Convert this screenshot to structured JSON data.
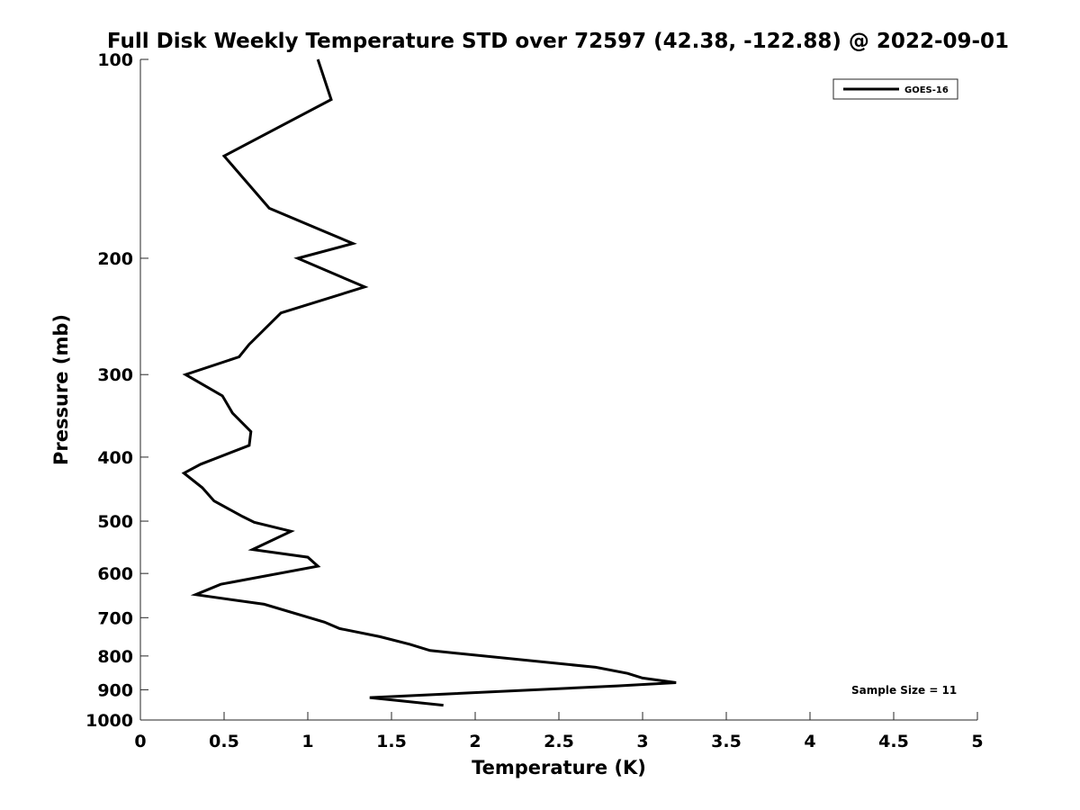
{
  "chart_data": {
    "type": "line",
    "title": "Full Disk Weekly Temperature STD over 72597 (42.38, -122.88) @ 2022-09-01",
    "xlabel": "Temperature (K)",
    "ylabel": "Pressure (mb)",
    "xlim": [
      0,
      5
    ],
    "ylim": [
      100,
      1000
    ],
    "y_scale": "log",
    "y_reversed": true,
    "x_ticks": [
      "0",
      "0.5",
      "1",
      "1.5",
      "2",
      "2.5",
      "3",
      "3.5",
      "4",
      "4.5",
      "5"
    ],
    "y_ticks": [
      "100",
      "200",
      "300",
      "400",
      "500",
      "600",
      "700",
      "800",
      "900",
      "1000"
    ],
    "grid": false,
    "legend_position": "top-right",
    "annotation": "Sample Size = 11",
    "series": [
      {
        "name": "GOES-16",
        "color": "#000000",
        "x": [
          1.06,
          1.14,
          0.5,
          0.77,
          1.27,
          0.94,
          1.34,
          0.84,
          0.65,
          0.59,
          0.27,
          0.49,
          0.55,
          0.66,
          0.65,
          0.36,
          0.26,
          0.37,
          0.44,
          0.61,
          0.68,
          0.9,
          0.67,
          1.0,
          1.06,
          0.48,
          0.33,
          0.74,
          1.1,
          1.19,
          1.43,
          1.61,
          1.73,
          2.72,
          2.91,
          3.0,
          3.2,
          2.85,
          1.37,
          1.81
        ],
        "y": [
          100,
          115,
          140,
          168,
          190,
          200,
          221,
          242,
          270,
          282,
          300,
          323,
          343,
          366,
          384,
          410,
          423,
          445,
          466,
          492,
          502,
          518,
          552,
          567,
          585,
          623,
          646,
          668,
          711,
          727,
          748,
          768,
          785,
          832,
          850,
          864,
          878,
          888,
          925,
          950
        ]
      }
    ]
  }
}
